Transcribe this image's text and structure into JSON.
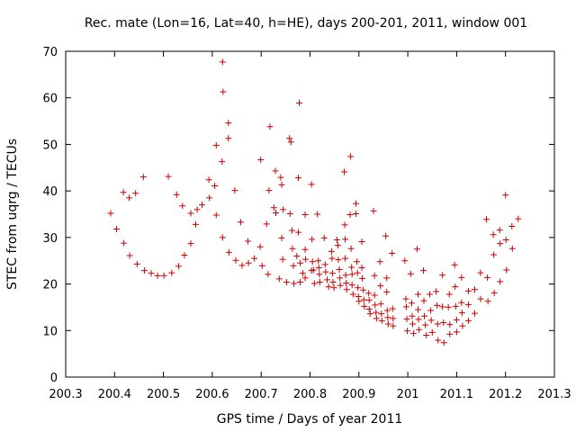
{
  "chart_data": {
    "type": "scatter",
    "title": "Rec. mate (Lon=16, Lat=40, h=HE), days 200-201, 2011, window 001",
    "xlabel": "GPS time / Days of year 2011",
    "ylabel": "STEC from uqrg / TECUs",
    "xlim": [
      200.3,
      201.3
    ],
    "ylim": [
      0,
      70
    ],
    "xticks": [
      200.3,
      200.4,
      200.5,
      200.6,
      200.7,
      200.8,
      200.9,
      201,
      201.1,
      201.2,
      201.3
    ],
    "xtick_labels": [
      "200.3",
      "200.4",
      "200.5",
      "200.6",
      "200.7",
      "200.8",
      "200.9",
      "201",
      "201.1",
      "201.2",
      "201.3"
    ],
    "yticks": [
      0,
      10,
      20,
      30,
      40,
      50,
      60,
      70
    ],
    "ytick_labels": [
      "0",
      "10",
      "20",
      "30",
      "40",
      "50",
      "60",
      "70"
    ],
    "grid": false,
    "marker": "plus",
    "color": "#cc0000",
    "series": [
      {
        "points": [
          [
            200.392,
            35.2
          ],
          [
            200.404,
            31.8
          ],
          [
            200.419,
            28.8
          ],
          [
            200.418,
            39.7
          ],
          [
            200.43,
            38.5
          ],
          [
            200.431,
            26.1
          ],
          [
            200.443,
            39.5
          ],
          [
            200.446,
            24.3
          ],
          [
            200.459,
            43.0
          ],
          [
            200.461,
            22.9
          ],
          [
            200.475,
            22.3
          ],
          [
            200.488,
            21.8
          ],
          [
            200.501,
            21.8
          ],
          [
            200.51,
            43.1
          ],
          [
            200.517,
            22.4
          ],
          [
            200.527,
            39.2
          ],
          [
            200.531,
            23.8
          ],
          [
            200.539,
            36.8
          ],
          [
            200.543,
            26.2
          ],
          [
            200.556,
            35.2
          ],
          [
            200.556,
            28.7
          ],
          [
            200.566,
            32.8
          ],
          [
            200.569,
            36.0
          ],
          [
            200.579,
            37.0
          ],
          [
            200.593,
            42.4
          ],
          [
            200.594,
            38.5
          ],
          [
            200.605,
            41.1
          ],
          [
            200.608,
            34.8
          ],
          [
            200.608,
            49.8
          ],
          [
            200.62,
            46.3
          ],
          [
            200.621,
            30.0
          ],
          [
            200.622,
            61.3
          ],
          [
            200.621,
            67.7
          ],
          [
            200.633,
            54.6
          ],
          [
            200.633,
            51.3
          ],
          [
            200.634,
            26.8
          ],
          [
            200.646,
            40.1
          ],
          [
            200.648,
            25.1
          ],
          [
            200.658,
            33.3
          ],
          [
            200.661,
            24.0
          ],
          [
            200.673,
            29.2
          ],
          [
            200.674,
            24.5
          ],
          [
            200.686,
            25.5
          ],
          [
            200.699,
            46.7
          ],
          [
            200.698,
            28.0
          ],
          [
            200.702,
            23.9
          ],
          [
            200.711,
            32.9
          ],
          [
            200.714,
            22.1
          ],
          [
            200.718,
            53.8
          ],
          [
            200.716,
            40.1
          ],
          [
            200.726,
            36.4
          ],
          [
            200.729,
            44.3
          ],
          [
            200.73,
            35.3
          ],
          [
            200.737,
            21.1
          ],
          [
            200.742,
            29.9
          ],
          [
            200.74,
            42.9
          ],
          [
            200.742,
            41.3
          ],
          [
            200.744,
            25.3
          ],
          [
            200.745,
            36.0
          ],
          [
            200.752,
            20.4
          ],
          [
            200.758,
            51.3
          ],
          [
            200.761,
            50.5
          ],
          [
            200.759,
            35.1
          ],
          [
            200.763,
            31.5
          ],
          [
            200.764,
            27.6
          ],
          [
            200.767,
            20.1
          ],
          [
            200.766,
            23.9
          ],
          [
            200.773,
            26.0
          ],
          [
            200.776,
            31.1
          ],
          [
            200.778,
            58.9
          ],
          [
            200.776,
            42.8
          ],
          [
            200.78,
            20.4
          ],
          [
            200.78,
            24.5
          ],
          [
            200.785,
            22.3
          ],
          [
            200.79,
            34.9
          ],
          [
            200.79,
            27.4
          ],
          [
            200.791,
            25.3
          ],
          [
            200.79,
            21.3
          ],
          [
            200.803,
            22.9
          ],
          [
            200.803,
            41.4
          ],
          [
            200.804,
            29.6
          ],
          [
            200.805,
            24.8
          ],
          [
            200.807,
            23.0
          ],
          [
            200.809,
            20.1
          ],
          [
            200.815,
            35.0
          ],
          [
            200.817,
            25.0
          ],
          [
            200.818,
            23.5
          ],
          [
            200.819,
            22.1
          ],
          [
            200.82,
            20.4
          ],
          [
            200.829,
            29.9
          ],
          [
            200.831,
            24.2
          ],
          [
            200.832,
            22.6
          ],
          [
            200.835,
            20.9
          ],
          [
            200.838,
            19.4
          ],
          [
            200.844,
            27.0
          ],
          [
            200.845,
            25.5
          ],
          [
            200.846,
            22.3
          ],
          [
            200.847,
            20.4
          ],
          [
            200.849,
            19.2
          ],
          [
            200.855,
            29.5
          ],
          [
            200.857,
            28.3
          ],
          [
            200.858,
            25.2
          ],
          [
            200.86,
            23.1
          ],
          [
            200.861,
            21.3
          ],
          [
            200.862,
            19.7
          ],
          [
            200.87,
            44.1
          ],
          [
            200.871,
            32.7
          ],
          [
            200.872,
            29.6
          ],
          [
            200.872,
            25.5
          ],
          [
            200.873,
            21.9
          ],
          [
            200.874,
            20.2
          ],
          [
            200.875,
            18.8
          ],
          [
            200.883,
            47.4
          ],
          [
            200.882,
            34.9
          ],
          [
            200.884,
            27.6
          ],
          [
            200.885,
            23.6
          ],
          [
            200.886,
            22.1
          ],
          [
            200.886,
            19.8
          ],
          [
            200.888,
            17.8
          ],
          [
            200.894,
            37.3
          ],
          [
            200.894,
            35.1
          ],
          [
            200.896,
            24.8
          ],
          [
            200.897,
            22.4
          ],
          [
            200.898,
            19.2
          ],
          [
            200.899,
            17.3
          ],
          [
            200.9,
            16.3
          ],
          [
            200.906,
            29.1
          ],
          [
            200.906,
            23.5
          ],
          [
            200.907,
            21.2
          ],
          [
            200.909,
            18.7
          ],
          [
            200.91,
            16.6
          ],
          [
            200.911,
            15.2
          ],
          [
            200.92,
            18.0
          ],
          [
            200.921,
            16.5
          ],
          [
            200.921,
            14.6
          ],
          [
            200.923,
            13.6
          ],
          [
            200.93,
            35.7
          ],
          [
            200.932,
            21.8
          ],
          [
            200.932,
            17.6
          ],
          [
            200.933,
            15.5
          ],
          [
            200.935,
            13.9
          ],
          [
            200.936,
            12.6
          ],
          [
            200.943,
            24.8
          ],
          [
            200.944,
            19.6
          ],
          [
            200.945,
            15.7
          ],
          [
            200.946,
            13.6
          ],
          [
            200.947,
            12.1
          ],
          [
            200.955,
            30.3
          ],
          [
            200.957,
            21.3
          ],
          [
            200.957,
            18.3
          ],
          [
            200.958,
            14.3
          ],
          [
            200.959,
            12.8
          ],
          [
            200.96,
            11.4
          ],
          [
            200.968,
            26.6
          ],
          [
            200.969,
            14.7
          ],
          [
            200.97,
            12.6
          ],
          [
            200.97,
            11.0
          ],
          [
            200.994,
            25.0
          ],
          [
            200.996,
            16.8
          ],
          [
            200.997,
            15.1
          ],
          [
            200.998,
            12.5
          ],
          [
            200.999,
            9.9
          ],
          [
            201.006,
            22.2
          ],
          [
            201.008,
            15.9
          ],
          [
            201.009,
            13.1
          ],
          [
            201.01,
            11.4
          ],
          [
            201.012,
            9.4
          ],
          [
            201.019,
            27.5
          ],
          [
            201.021,
            17.8
          ],
          [
            201.021,
            14.5
          ],
          [
            201.022,
            12.4
          ],
          [
            201.023,
            10.2
          ],
          [
            201.032,
            22.9
          ],
          [
            201.033,
            16.4
          ],
          [
            201.034,
            13.1
          ],
          [
            201.036,
            11.2
          ],
          [
            201.038,
            9.0
          ],
          [
            201.045,
            17.8
          ],
          [
            201.047,
            14.3
          ],
          [
            201.048,
            12.2
          ],
          [
            201.05,
            9.6
          ],
          [
            201.058,
            18.4
          ],
          [
            201.06,
            15.4
          ],
          [
            201.061,
            11.4
          ],
          [
            201.062,
            7.9
          ],
          [
            201.071,
            21.9
          ],
          [
            201.071,
            15.1
          ],
          [
            201.073,
            11.7
          ],
          [
            201.074,
            7.4
          ],
          [
            201.083,
            15.0
          ],
          [
            201.085,
            17.8
          ],
          [
            201.086,
            11.3
          ],
          [
            201.086,
            9.2
          ],
          [
            201.096,
            24.1
          ],
          [
            201.097,
            19.4
          ],
          [
            201.098,
            15.2
          ],
          [
            201.1,
            12.3
          ],
          [
            201.1,
            9.7
          ],
          [
            201.11,
            21.4
          ],
          [
            201.11,
            16.0
          ],
          [
            201.111,
            13.8
          ],
          [
            201.112,
            11.0
          ],
          [
            201.124,
            18.5
          ],
          [
            201.124,
            15.6
          ],
          [
            201.124,
            12.1
          ],
          [
            201.137,
            18.8
          ],
          [
            201.137,
            13.7
          ],
          [
            201.149,
            22.4
          ],
          [
            201.149,
            16.8
          ],
          [
            201.161,
            33.9
          ],
          [
            201.163,
            21.4
          ],
          [
            201.164,
            16.3
          ],
          [
            201.175,
            30.6
          ],
          [
            201.176,
            26.3
          ],
          [
            201.177,
            18.1
          ],
          [
            201.188,
            31.6
          ],
          [
            201.189,
            28.7
          ],
          [
            201.189,
            20.5
          ],
          [
            201.2,
            39.1
          ],
          [
            201.201,
            29.5
          ],
          [
            201.202,
            23.0
          ],
          [
            201.213,
            32.4
          ],
          [
            201.214,
            27.6
          ],
          [
            201.226,
            34.0
          ]
        ]
      }
    ]
  }
}
